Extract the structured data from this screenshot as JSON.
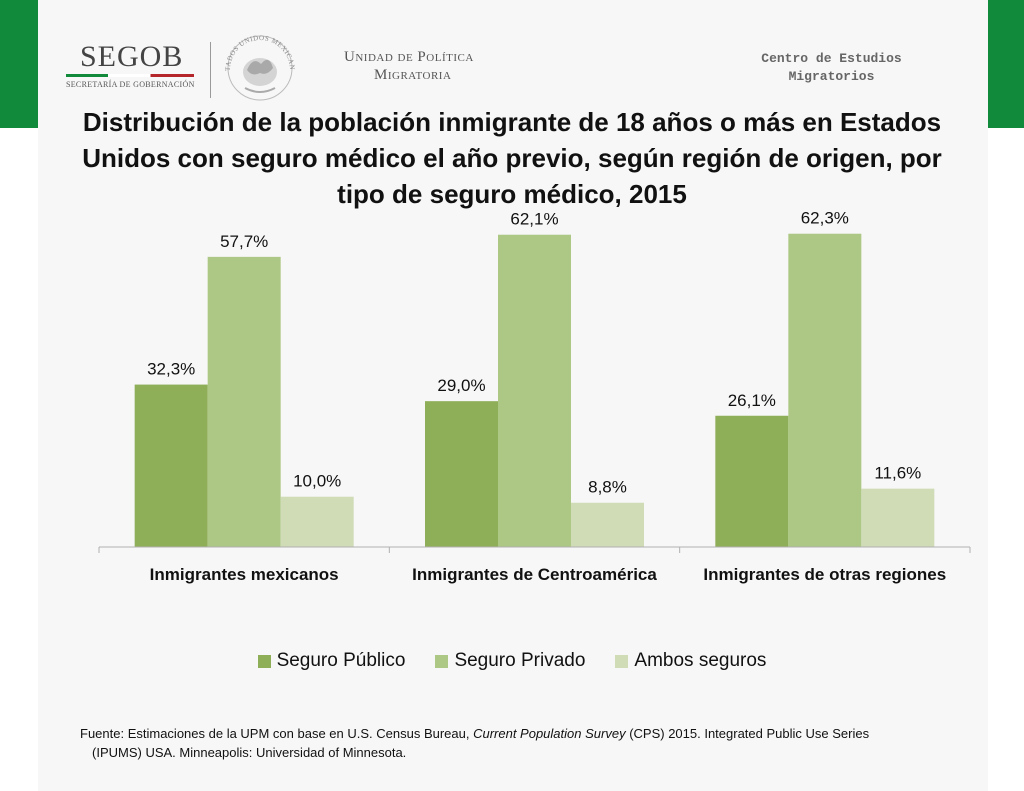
{
  "header": {
    "org_name": "SEGOB",
    "org_subtitle": "SECRETARÍA DE GOBERNACIÓN",
    "seal_text": "ESTADOS UNIDOS MEXICANOS",
    "unit_line1": "Unidad de Política",
    "unit_line2": "Migratoria",
    "center_line1": "Centro de Estudios",
    "center_line2": "Migratorios"
  },
  "title": "Distribución de la población inmigrante de 18 años o más en Estados Unidos con seguro médico el año previo, según región de origen, por tipo de seguro médico, 2015",
  "chart_data": {
    "type": "bar",
    "title": "Distribución de la población inmigrante de 18 años o más en Estados Unidos con seguro médico el año previo, según región de origen, por tipo de seguro médico, 2015",
    "categories": [
      "Inmigrantes mexicanos",
      "Inmigrantes de Centroamérica",
      "Inmigrantes de otras regiones"
    ],
    "series": [
      {
        "name": "Seguro Público",
        "values": [
          32.3,
          29.0,
          26.1
        ],
        "labels": [
          "32,3%",
          "29,0%",
          "26,1%"
        ],
        "color": "#8fae58"
      },
      {
        "name": "Seguro Privado",
        "values": [
          57.7,
          62.1,
          62.3
        ],
        "labels": [
          "57,7%",
          "62,1%",
          "62,3%"
        ],
        "color": "#adc884"
      },
      {
        "name": "Ambos seguros",
        "values": [
          10.0,
          8.8,
          11.6
        ],
        "labels": [
          "10,0%",
          "8,8%",
          "11,6%"
        ],
        "color": "#cfdcb6"
      }
    ],
    "unit": "%",
    "ylim": [
      0,
      70
    ],
    "y_axis_visible": false,
    "grid": false,
    "legend_position": "bottom"
  },
  "footnote": {
    "prefix": "Fuente: Estimaciones de la UPM con base en U.S. Census Bureau, ",
    "italic": "Current Population Survey",
    "suffix_line1": " (CPS) 2015. Integrated Public Use Series",
    "line2": "(IPUMS) USA. Minneapolis: Universidad of Minnesota."
  }
}
